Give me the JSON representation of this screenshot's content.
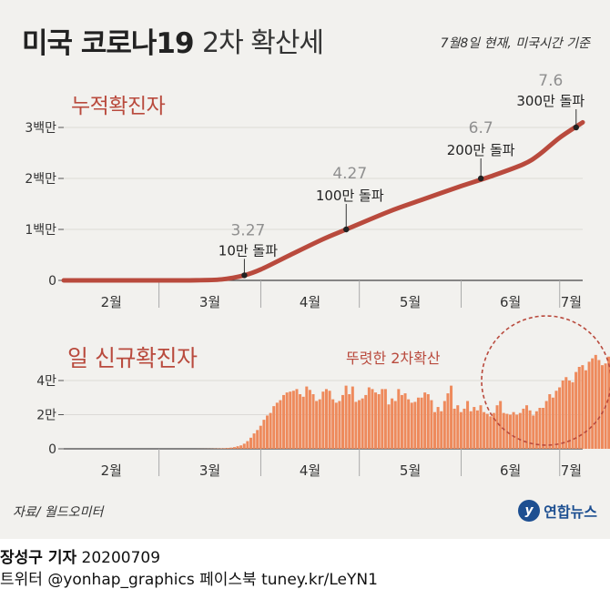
{
  "header": {
    "title_main": "미국 코로나19",
    "title_sub": "2차 확산세",
    "as_of": "7월8일 현재, 미국시간 기준"
  },
  "source": "자료/ 월드오미터",
  "logo": {
    "mark": "y",
    "text": "연합뉴스"
  },
  "credit": {
    "reporter": "장성구 기자",
    "date": "20200709",
    "twitter": "트위터 @yonhap_graphics",
    "facebook": "페이스북 tuney.kr/LeYN1"
  },
  "colors": {
    "line": "#b94a3d",
    "bar": "#ee8a5c",
    "title_red": "#b94a3d",
    "milestone_date": "#8f8f8f",
    "background": "#f2f1ee"
  },
  "chart_data": [
    {
      "type": "line",
      "title": "누적확진자",
      "ylim": [
        0,
        3400000
      ],
      "y_ticks": [
        {
          "value": 0,
          "label": "0"
        },
        {
          "value": 1000000,
          "label": "1백만"
        },
        {
          "value": 2000000,
          "label": "2백만"
        },
        {
          "value": 3000000,
          "label": "3백만"
        }
      ],
      "x_month_labels": [
        "2월",
        "3월",
        "4월",
        "5월",
        "6월",
        "7월"
      ],
      "x_range": [
        "2020-02-01",
        "2020-07-08"
      ],
      "series": [
        {
          "x": [
            "2020-02-01",
            "2020-03-01",
            "2020-03-10",
            "2020-03-20",
            "2020-03-27",
            "2020-04-01",
            "2020-04-10",
            "2020-04-20",
            "2020-04-27",
            "2020-05-10",
            "2020-05-20",
            "2020-06-01",
            "2020-06-10",
            "2020-06-20",
            "2020-06-25",
            "2020-07-01",
            "2020-07-08"
          ],
          "values": [
            8,
            75,
            1000,
            19000,
            100000,
            215000,
            500000,
            810000,
            1000000,
            1350000,
            1580000,
            1850000,
            2040000,
            2280000,
            2480000,
            2800000,
            3100000
          ]
        }
      ],
      "milestones": [
        {
          "date_label": "3.27",
          "label": "10만 돌파",
          "x": "2020-03-27",
          "y": 100000
        },
        {
          "date_label": "4.27",
          "label": "100만 돌파",
          "x": "2020-04-27",
          "y": 1000000
        },
        {
          "date_label": "6.7",
          "label": "200만 돌파",
          "x": "2020-06-07",
          "y": 2000000
        },
        {
          "date_label": "7.6",
          "label": "300만 돌파",
          "x": "2020-07-06",
          "y": 3000000
        }
      ]
    },
    {
      "type": "bar",
      "title": "일 신규확진자",
      "annotation": "뚜렷한 2차확산",
      "ylim": [
        0,
        62000
      ],
      "y_ticks": [
        {
          "value": 0,
          "label": "0"
        },
        {
          "value": 20000,
          "label": "2만"
        },
        {
          "value": 40000,
          "label": "4만"
        }
      ],
      "x_month_labels": [
        "2월",
        "3월",
        "4월",
        "5월",
        "6월",
        "7월"
      ],
      "x_range": [
        "2020-02-01",
        "2020-07-08"
      ],
      "start_date": "2020-02-01",
      "values": [
        0,
        0,
        0,
        0,
        0,
        0,
        0,
        0,
        0,
        0,
        0,
        0,
        0,
        0,
        0,
        0,
        0,
        0,
        0,
        0,
        0,
        0,
        0,
        0,
        0,
        0,
        0,
        0,
        0,
        0,
        0,
        0,
        0,
        0,
        0,
        0,
        0,
        0,
        0,
        0,
        0,
        20,
        30,
        40,
        60,
        100,
        150,
        200,
        280,
        350,
        500,
        700,
        1000,
        1500,
        2000,
        3000,
        4500,
        6500,
        9000,
        11000,
        13500,
        17000,
        19500,
        21000,
        25000,
        27000,
        28500,
        31500,
        33000,
        33500,
        34000,
        35000,
        32000,
        30500,
        36500,
        34500,
        32000,
        28000,
        29000,
        33500,
        35000,
        34000,
        29000,
        27000,
        28000,
        31500,
        37000,
        32000,
        36500,
        27500,
        28500,
        29500,
        31500,
        36000,
        35000,
        33000,
        32000,
        35000,
        35000,
        26000,
        29500,
        28000,
        35000,
        31500,
        32500,
        29000,
        27000,
        27500,
        30000,
        30000,
        33000,
        32000,
        28500,
        21500,
        24500,
        22000,
        28000,
        32500,
        37000,
        23500,
        25500,
        21500,
        23500,
        28000,
        22000,
        24500,
        22500,
        25500,
        21500,
        20500,
        19000,
        21000,
        25500,
        28000,
        21000,
        20500,
        20000,
        21500,
        20000,
        21000,
        23500,
        25500,
        22500,
        19500,
        22000,
        24000,
        24000,
        28000,
        32000,
        30000,
        34000,
        36000,
        40000,
        42000,
        40000,
        39000,
        45000,
        48000,
        49000,
        46000,
        51000,
        53000,
        55000,
        52000,
        49000,
        50000,
        54000,
        60000
      ]
    }
  ]
}
